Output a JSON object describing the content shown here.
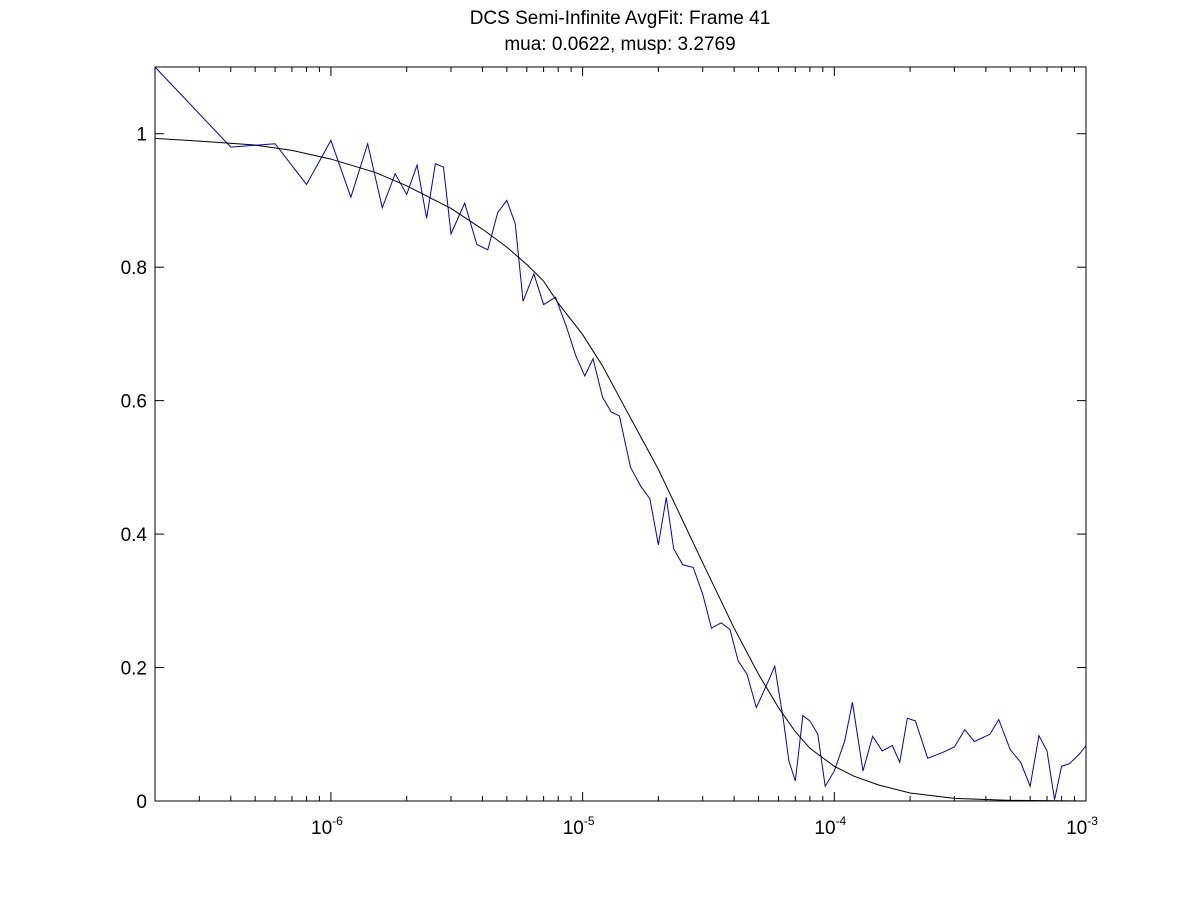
{
  "chart_data": {
    "type": "line",
    "title": "DCS Semi-Infinite AvgFit: Frame 41",
    "subtitle": "mua: 0.0622, musp: 3.2769",
    "xlabel": "",
    "ylabel": "",
    "xscale": "log",
    "xlim": [
      2e-07,
      0.001
    ],
    "ylim": [
      0,
      1.1
    ],
    "xticks": [
      {
        "value": 1e-06,
        "base": "10",
        "exp": "-6"
      },
      {
        "value": 1e-05,
        "base": "10",
        "exp": "-5"
      },
      {
        "value": 0.0001,
        "base": "10",
        "exp": "-4"
      },
      {
        "value": 0.001,
        "base": "10",
        "exp": "-3"
      }
    ],
    "yticks": [
      {
        "value": 0,
        "label": "0"
      },
      {
        "value": 0.2,
        "label": "0.2"
      },
      {
        "value": 0.4,
        "label": "0.4"
      },
      {
        "value": 0.6,
        "label": "0.6"
      },
      {
        "value": 0.8,
        "label": "0.8"
      },
      {
        "value": 1,
        "label": "1"
      }
    ],
    "grid": false,
    "series": [
      {
        "color": "#0000cc",
        "points": [
          [
            2e-07,
            1.1
          ],
          [
            4e-07,
            0.98
          ],
          [
            6e-07,
            0.985
          ],
          [
            8e-07,
            0.924
          ],
          [
            1e-06,
            0.99
          ],
          [
            1.2e-06,
            0.905
          ],
          [
            1.4e-06,
            0.985
          ],
          [
            1.6e-06,
            0.889
          ],
          [
            1.8e-06,
            0.94
          ],
          [
            2e-06,
            0.909
          ],
          [
            2.2e-06,
            0.953
          ],
          [
            2.4e-06,
            0.873
          ],
          [
            2.6e-06,
            0.955
          ],
          [
            2.8e-06,
            0.95
          ],
          [
            3e-06,
            0.85
          ],
          [
            3.4e-06,
            0.896
          ],
          [
            3.8e-06,
            0.834
          ],
          [
            4.2e-06,
            0.826
          ],
          [
            4.6e-06,
            0.882
          ],
          [
            5e-06,
            0.9
          ],
          [
            5.4e-06,
            0.865
          ],
          [
            5.8e-06,
            0.749
          ],
          [
            6.4e-06,
            0.79
          ],
          [
            7e-06,
            0.744
          ],
          [
            7.8e-06,
            0.755
          ],
          [
            8.6e-06,
            0.712
          ],
          [
            9.4e-06,
            0.667
          ],
          [
            1.02e-05,
            0.637
          ],
          [
            1.1e-05,
            0.663
          ],
          [
            1.2e-05,
            0.605
          ],
          [
            1.3e-05,
            0.583
          ],
          [
            1.4e-05,
            0.577
          ],
          [
            1.55e-05,
            0.5
          ],
          [
            1.7e-05,
            0.472
          ],
          [
            1.85e-05,
            0.453
          ],
          [
            2e-05,
            0.384
          ],
          [
            2.15e-05,
            0.455
          ],
          [
            2.3e-05,
            0.378
          ],
          [
            2.5e-05,
            0.354
          ],
          [
            2.75e-05,
            0.35
          ],
          [
            3e-05,
            0.31
          ],
          [
            3.25e-05,
            0.259
          ],
          [
            3.55e-05,
            0.267
          ],
          [
            3.85e-05,
            0.257
          ],
          [
            4.15e-05,
            0.21
          ],
          [
            4.5e-05,
            0.19
          ],
          [
            4.9e-05,
            0.14
          ],
          [
            5.4e-05,
            0.175
          ],
          [
            5.8e-05,
            0.202
          ],
          [
            6.3e-05,
            0.117
          ],
          [
            6.6e-05,
            0.06
          ],
          [
            7e-05,
            0.03
          ],
          [
            7.5e-05,
            0.128
          ],
          [
            8e-05,
            0.12
          ],
          [
            8.6e-05,
            0.1
          ],
          [
            9.2e-05,
            0.022
          ],
          [
            0.0001,
            0.045
          ],
          [
            0.00011,
            0.09
          ],
          [
            0.000118,
            0.148
          ],
          [
            0.00013,
            0.045
          ],
          [
            0.000142,
            0.097
          ],
          [
            0.000155,
            0.075
          ],
          [
            0.00017,
            0.083
          ],
          [
            0.000182,
            0.058
          ],
          [
            0.000195,
            0.124
          ],
          [
            0.00021,
            0.12
          ],
          [
            0.000235,
            0.064
          ],
          [
            0.00027,
            0.073
          ],
          [
            0.0003,
            0.081
          ],
          [
            0.00033,
            0.107
          ],
          [
            0.00036,
            0.089
          ],
          [
            0.000415,
            0.1
          ],
          [
            0.00045,
            0.122
          ],
          [
            0.0005,
            0.077
          ],
          [
            0.00055,
            0.058
          ],
          [
            0.0006,
            0.022
          ],
          [
            0.00065,
            0.098
          ],
          [
            0.0007,
            0.075
          ],
          [
            0.00075,
            0.002
          ],
          [
            0.0008,
            0.052
          ],
          [
            0.00086,
            0.056
          ],
          [
            0.00094,
            0.07
          ],
          [
            0.001,
            0.083
          ]
        ]
      },
      {
        "color": "#000000",
        "points": [
          [
            2e-07,
            0.993
          ],
          [
            3e-07,
            0.989
          ],
          [
            5e-07,
            0.983
          ],
          [
            7e-07,
            0.975
          ],
          [
            1e-06,
            0.962
          ],
          [
            1.5e-06,
            0.942
          ],
          [
            2e-06,
            0.922
          ],
          [
            3e-06,
            0.888
          ],
          [
            4e-06,
            0.857
          ],
          [
            5e-06,
            0.83
          ],
          [
            6e-06,
            0.804
          ],
          [
            7e-06,
            0.779
          ],
          [
            8e-06,
            0.746
          ],
          [
            1e-05,
            0.699
          ],
          [
            1.2e-05,
            0.652
          ],
          [
            1.5e-05,
            0.584
          ],
          [
            2e-05,
            0.497
          ],
          [
            2.5e-05,
            0.42
          ],
          [
            3e-05,
            0.357
          ],
          [
            4e-05,
            0.259
          ],
          [
            5e-05,
            0.19
          ],
          [
            6e-05,
            0.14
          ],
          [
            7e-05,
            0.104
          ],
          [
            8e-05,
            0.079
          ],
          [
            0.0001,
            0.052
          ],
          [
            0.00012,
            0.037
          ],
          [
            0.00015,
            0.024
          ],
          [
            0.0002,
            0.012
          ],
          [
            0.0003,
            0.004
          ],
          [
            0.0005,
            0.001
          ],
          [
            0.001,
            0.0
          ]
        ]
      }
    ]
  }
}
